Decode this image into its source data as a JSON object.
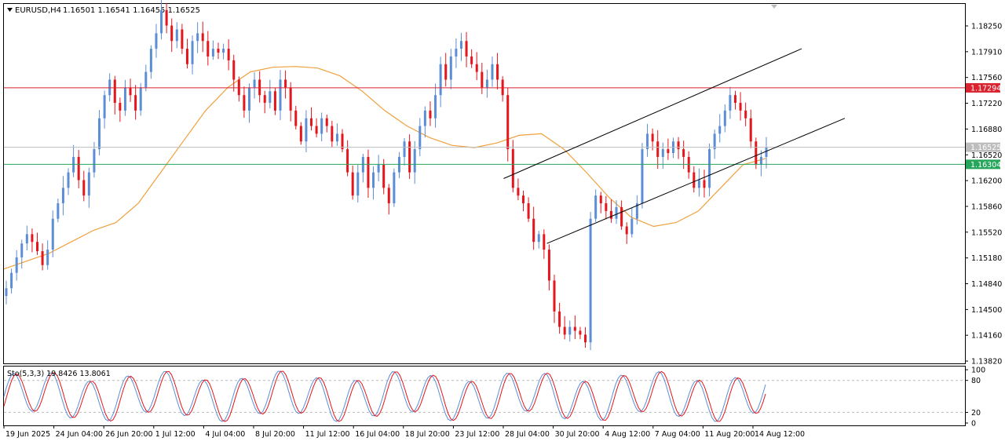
{
  "chart_data": {
    "type": "candlestick",
    "header": {
      "symbol_timeframe": "EURUSD,H4",
      "ohlc": "1.16501 1.16541 1.16455 1.16525"
    },
    "price_axis": {
      "ticks": [
        "1.18250",
        "1.17910",
        "1.17560",
        "1.17220",
        "1.16880",
        "1.16520",
        "1.16200",
        "1.15860",
        "1.15520",
        "1.15180",
        "1.14840",
        "1.14500",
        "1.14160",
        "1.13820"
      ],
      "ylim": [
        1.1378,
        1.186
      ]
    },
    "horizontal_lines": [
      {
        "price": 1.17294,
        "label": "1.17294",
        "color": "#d9232e"
      },
      {
        "price": 1.16525,
        "label": "1.16525",
        "color": "#bdbdbd"
      },
      {
        "price": 1.16304,
        "label": "1.16304",
        "color": "#26a65b"
      }
    ],
    "time_axis": {
      "labels": [
        "19 Jun 2025",
        "24 Jun 04:00",
        "26 Jun 20:00",
        "1 Jul 12:00",
        "4 Jul 04:00",
        "8 Jul 20:00",
        "11 Jul 12:00",
        "16 Jul 04:00",
        "18 Jul 20:00",
        "23 Jul 12:00",
        "28 Jul 04:00",
        "30 Jul 20:00",
        "4 Aug 12:00",
        "7 Aug 04:00",
        "11 Aug 20:00",
        "14 Aug 12:00"
      ]
    },
    "bull_color": "#5b8ed6",
    "bear_color": "#e5151c",
    "ma_color": "#f0a03c",
    "candle_closes": [
      1.147,
      1.149,
      1.151,
      1.1528,
      1.154,
      1.153,
      1.1518,
      1.15,
      1.152,
      1.156,
      1.158,
      1.16,
      1.162,
      1.164,
      1.161,
      1.159,
      1.162,
      1.165,
      1.169,
      1.172,
      1.174,
      1.171,
      1.17,
      1.173,
      1.172,
      1.17,
      1.173,
      1.175,
      1.178,
      1.18,
      1.183,
      1.181,
      1.179,
      1.1805,
      1.178,
      1.176,
      1.179,
      1.18,
      1.179,
      1.177,
      1.178,
      1.1775,
      1.178,
      1.1765,
      1.174,
      1.172,
      1.17,
      1.173,
      1.174,
      1.172,
      1.171,
      1.1725,
      1.17,
      1.174,
      1.173,
      1.17,
      1.168,
      1.166,
      1.169,
      1.168,
      1.167,
      1.169,
      1.168,
      1.166,
      1.167,
      1.165,
      1.162,
      1.159,
      1.162,
      1.164,
      1.16,
      1.162,
      1.163,
      1.16,
      1.158,
      1.162,
      1.164,
      1.166,
      1.162,
      1.165,
      1.168,
      1.17,
      1.169,
      1.172,
      1.176,
      1.174,
      1.177,
      1.178,
      1.179,
      1.177,
      1.176,
      1.175,
      1.173,
      1.174,
      1.176,
      1.174,
      1.172,
      1.165,
      1.16,
      1.159,
      1.158,
      1.156,
      1.153,
      1.154,
      1.152,
      1.148,
      1.144,
      1.142,
      1.141,
      1.142,
      1.1415,
      1.141,
      1.14,
      1.156,
      1.159,
      1.158,
      1.157,
      1.156,
      1.1575,
      1.155,
      1.154,
      1.156,
      1.158,
      1.165,
      1.167,
      1.166,
      1.164,
      1.165,
      1.1645,
      1.166,
      1.165,
      1.164,
      1.162,
      1.16,
      1.161,
      1.16,
      1.165,
      1.167,
      1.168,
      1.17,
      1.172,
      1.171,
      1.17,
      1.169,
      1.166,
      1.163,
      1.164,
      1.16525
    ],
    "ma_points": [
      1.1495,
      1.1505,
      1.1515,
      1.153,
      1.1545,
      1.1555,
      1.158,
      1.162,
      1.166,
      1.17,
      1.173,
      1.175,
      1.1756,
      1.1757,
      1.1755,
      1.1745,
      1.1725,
      1.17,
      1.168,
      1.1665,
      1.1655,
      1.1652,
      1.1658,
      1.1668,
      1.167,
      1.165,
      1.162,
      1.1588,
      1.1562,
      1.155,
      1.1555,
      1.157,
      1.16,
      1.163,
      1.1638
    ],
    "channel": {
      "upper": {
        "from": [
          0.52,
          1.1612
        ],
        "to": [
          0.83,
          1.178
        ]
      },
      "lower": {
        "from": [
          0.565,
          1.1528
        ],
        "to": [
          0.875,
          1.169
        ]
      }
    },
    "stochastic": {
      "label": "Sto(5,3,3) 19.8426 13.8061",
      "ticks": [
        "100",
        "80",
        "20",
        "0"
      ],
      "main_color": "#5b8ed6",
      "signal_color": "#e5151c"
    }
  }
}
